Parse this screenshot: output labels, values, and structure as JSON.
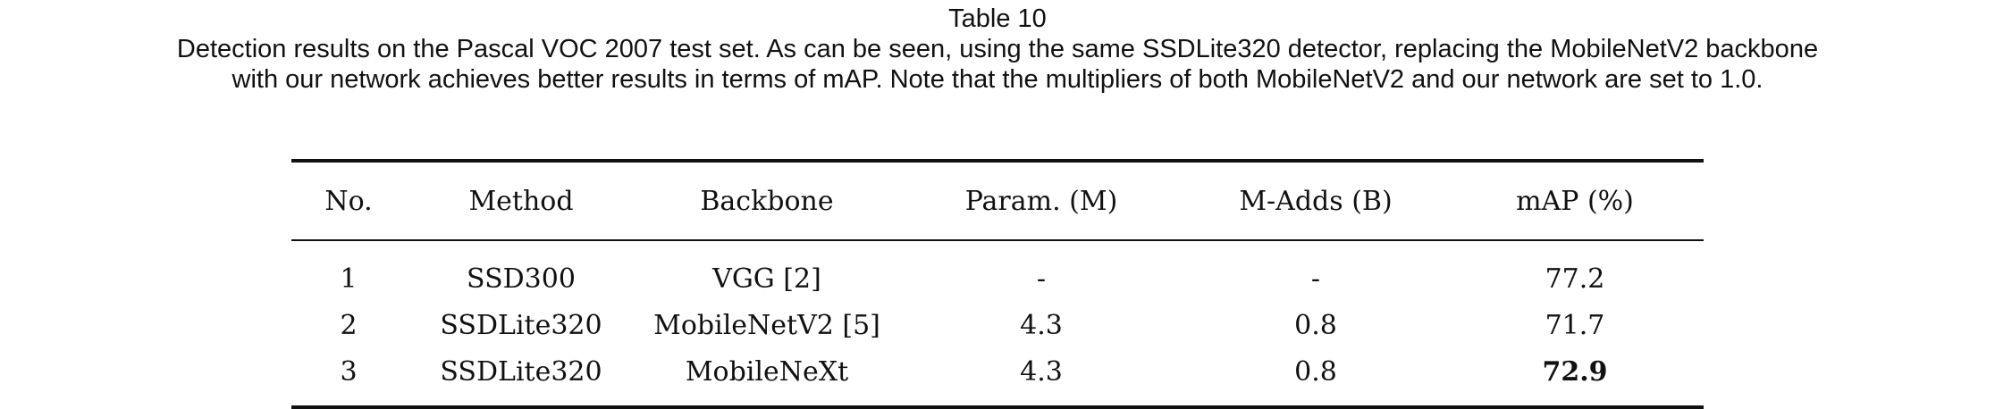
{
  "caption": {
    "title": "Table  10",
    "line1": "Detection results on the Pascal VOC 2007 test set. As can be seen, using the same SSDLite320 detector, replacing the MobileNetV2 backbone",
    "line2": "with our network achieves better results in terms of mAP. Note that the multipliers of both MobileNetV2 and our network are set to 1.0."
  },
  "table": {
    "headers": [
      "No.",
      "Method",
      "Backbone",
      "Param. (M)",
      "M-Adds (B)",
      "mAP (%)"
    ],
    "rows": [
      [
        "1",
        "SSD300",
        "VGG [2]",
        "-",
        "-",
        "77.2"
      ],
      [
        "2",
        "SSDLite320",
        "MobileNetV2 [5]",
        "4.3",
        "0.8",
        "71.7"
      ],
      [
        "3",
        "SSDLite320",
        "MobileNeXt",
        "4.3",
        "0.8",
        "72.9"
      ]
    ],
    "bold_cells": [
      [
        2,
        5
      ]
    ]
  }
}
